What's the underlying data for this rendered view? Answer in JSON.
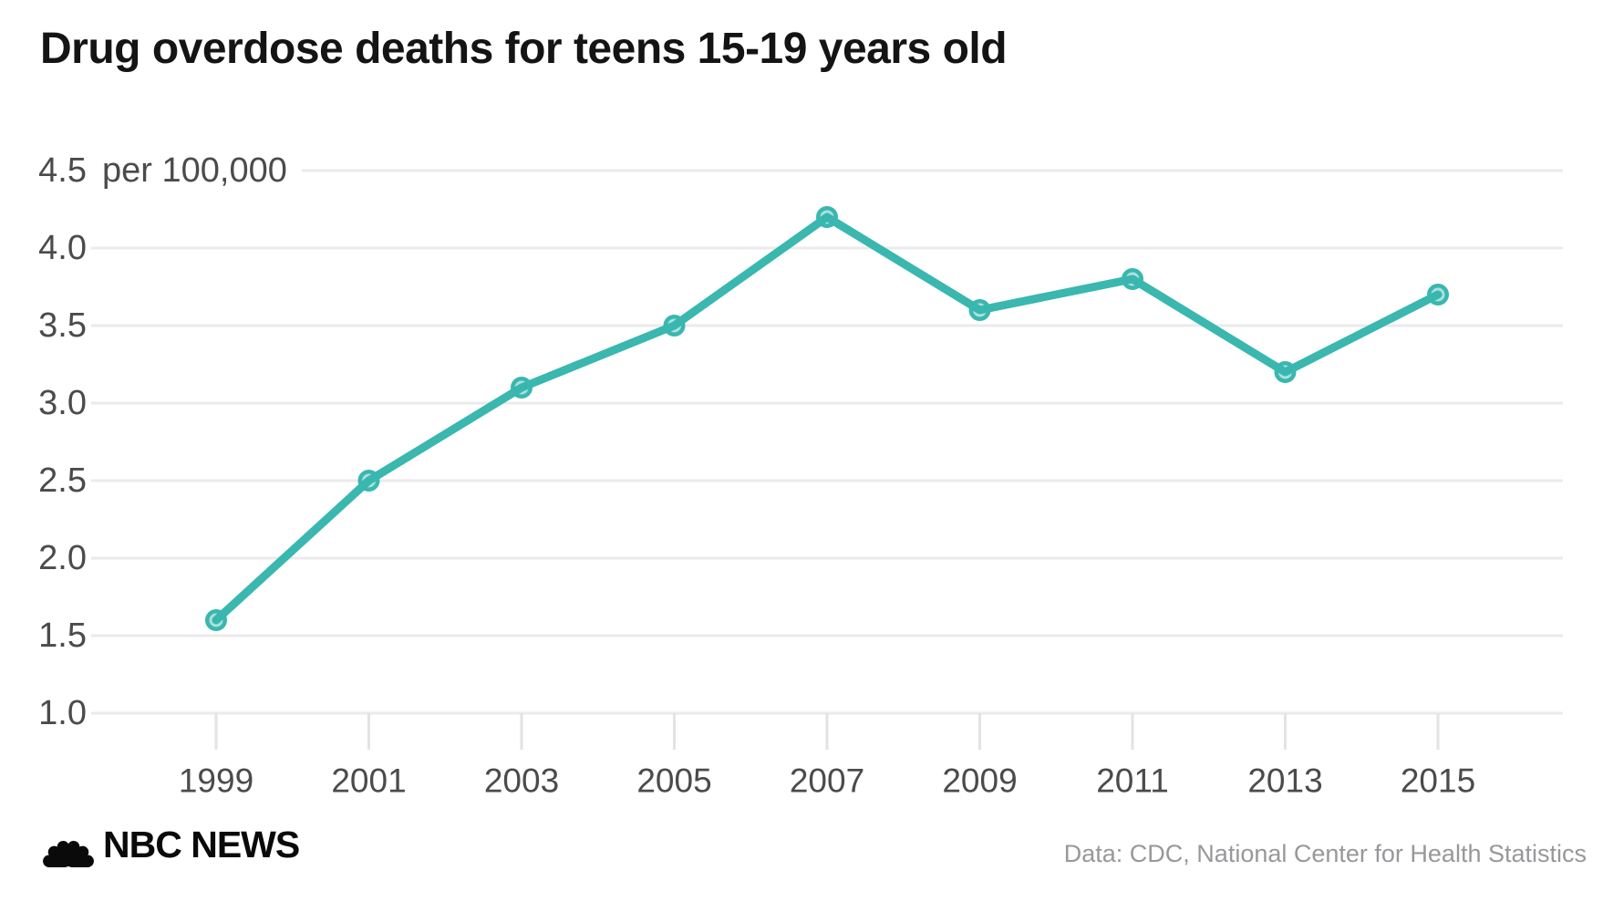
{
  "header": {
    "title": "Drug overdose deaths for teens 15-19 years old"
  },
  "footer": {
    "brand": "NBC NEWS",
    "source": "Data: CDC, National Center for Health Statistics"
  },
  "colors": {
    "line": "#3ab7af",
    "marker_fill": "#a8ddd8",
    "grid": "#ebebeb",
    "tick": "#e3e3e3",
    "axis_text": "#4b4b4b",
    "title_text": "#141414",
    "source_text": "#98989b",
    "brand_text": "#0a0a0a",
    "background": "#ffffff"
  },
  "chart_data": {
    "type": "line",
    "title": "Drug overdose deaths for teens 15-19 years old",
    "unit_label": "per 100,000",
    "x": [
      1999,
      2001,
      2003,
      2005,
      2007,
      2009,
      2011,
      2013,
      2015
    ],
    "values": [
      1.6,
      2.5,
      3.1,
      3.5,
      4.2,
      3.6,
      3.8,
      3.2,
      3.7
    ],
    "xticks": [
      "1999",
      "2001",
      "2003",
      "2005",
      "2007",
      "2009",
      "2011",
      "2013",
      "2015"
    ],
    "yticks": [
      "4.5",
      "4.0",
      "3.5",
      "3.0",
      "2.5",
      "2.0",
      "1.5",
      "1.0"
    ],
    "ytick_top_suffix": "per 100,000",
    "ylim": [
      1.0,
      4.5
    ],
    "xlabel": "",
    "ylabel": "",
    "grid": true,
    "legend": "none",
    "source": "Data: CDC, National Center for Health Statistics"
  }
}
